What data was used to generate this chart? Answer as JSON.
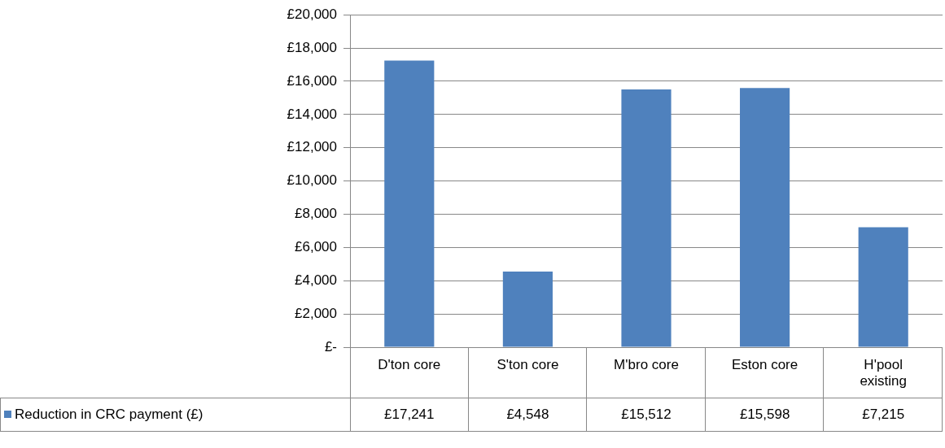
{
  "chart_data": {
    "type": "bar",
    "categories": [
      "D'ton core",
      "S'ton core",
      "M'bro core",
      "Eston core",
      "H'pool existing"
    ],
    "series": [
      {
        "name": "Reduction in CRC payment (£)",
        "color": "#4f81bd",
        "values": [
          17241,
          4548,
          15512,
          15598,
          7215
        ],
        "value_labels": [
          "£17,241",
          "£4,548",
          "£15,512",
          "£15,598",
          "£7,215"
        ]
      }
    ],
    "ylim": [
      0,
      20000
    ],
    "yticks": [
      {
        "value": 0,
        "label": "£-"
      },
      {
        "value": 2000,
        "label": "£2,000"
      },
      {
        "value": 4000,
        "label": "£4,000"
      },
      {
        "value": 6000,
        "label": "£6,000"
      },
      {
        "value": 8000,
        "label": "£8,000"
      },
      {
        "value": 10000,
        "label": "£10,000"
      },
      {
        "value": 12000,
        "label": "£12,000"
      },
      {
        "value": 14000,
        "label": "£14,000"
      },
      {
        "value": 16000,
        "label": "£16,000"
      },
      {
        "value": 18000,
        "label": "£18,000"
      },
      {
        "value": 20000,
        "label": "£20,000"
      }
    ],
    "grid": "y",
    "legend": "bottom"
  }
}
